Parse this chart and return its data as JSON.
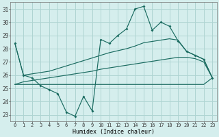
{
  "xlabel": "Humidex (Indice chaleur)",
  "bg_color": "#d5eeed",
  "grid_color": "#aed4d2",
  "line_color": "#1a6b60",
  "xlim": [
    -0.5,
    23.5
  ],
  "ylim": [
    22.5,
    31.5
  ],
  "xticks": [
    0,
    1,
    2,
    3,
    4,
    5,
    6,
    7,
    8,
    9,
    10,
    11,
    12,
    13,
    14,
    15,
    16,
    17,
    18,
    19,
    20,
    21,
    22,
    23
  ],
  "yticks": [
    23,
    24,
    25,
    26,
    27,
    28,
    29,
    30,
    31
  ],
  "main_y": [
    28.4,
    26.0,
    25.8,
    25.2,
    24.9,
    24.6,
    23.2,
    22.9,
    24.4,
    23.3,
    28.7,
    28.4,
    29.0,
    29.5,
    31.0,
    31.2,
    29.4,
    30.0,
    29.7,
    28.6,
    27.8,
    27.5,
    27.2,
    25.8
  ],
  "min_y": [
    25.3,
    25.3,
    25.3,
    25.3,
    25.3,
    25.3,
    25.3,
    25.3,
    25.3,
    25.3,
    25.3,
    25.3,
    25.3,
    25.3,
    25.3,
    25.3,
    25.3,
    25.3,
    25.3,
    25.3,
    25.3,
    25.3,
    25.3,
    25.8
  ],
  "max_y": [
    28.4,
    26.0,
    26.1,
    26.2,
    26.3,
    26.5,
    26.7,
    26.9,
    27.1,
    27.3,
    27.5,
    27.7,
    27.85,
    28.0,
    28.2,
    28.45,
    28.55,
    28.65,
    28.75,
    28.65,
    27.8,
    27.5,
    27.2,
    25.8
  ],
  "avg_y": [
    25.3,
    25.5,
    25.6,
    25.7,
    25.8,
    25.9,
    26.0,
    26.1,
    26.2,
    26.3,
    26.45,
    26.55,
    26.65,
    26.75,
    26.85,
    26.95,
    27.05,
    27.15,
    27.25,
    27.35,
    27.35,
    27.25,
    27.0,
    25.8
  ]
}
